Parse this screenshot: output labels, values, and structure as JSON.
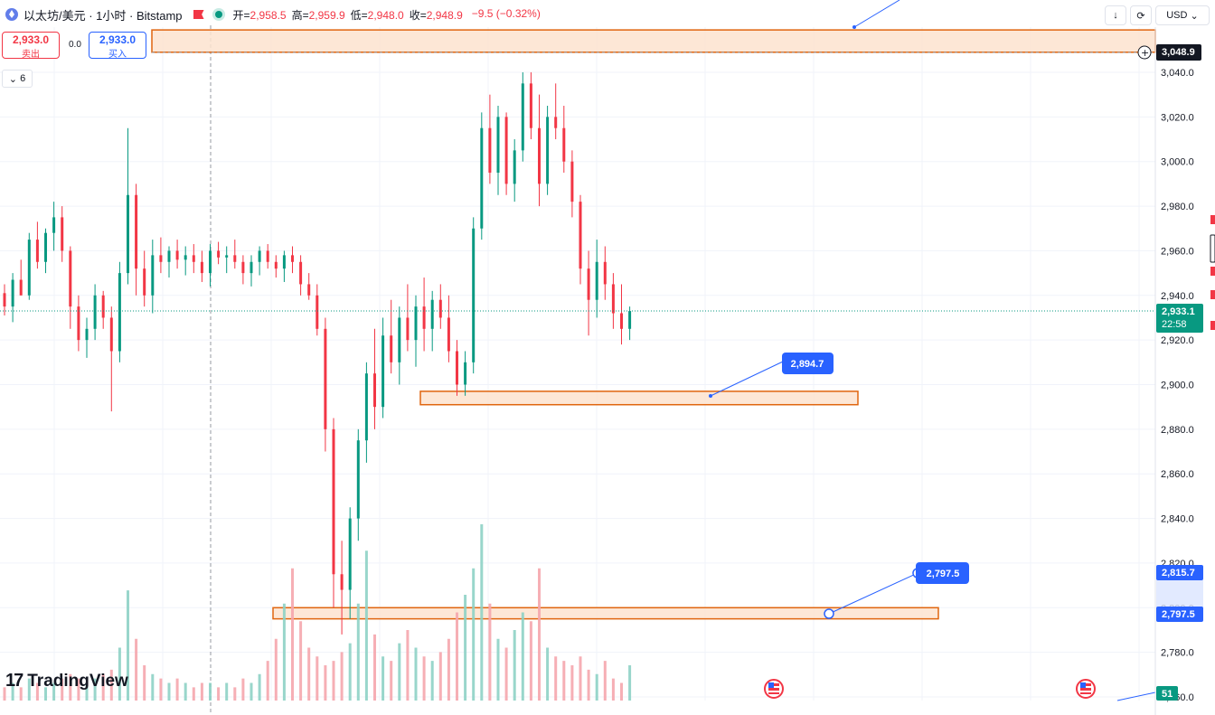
{
  "header": {
    "symbol_title": "以太坊/美元 · 1小时 · Bitstamp",
    "open_label": "开=",
    "open_value": "2,958.5",
    "high_label": "高=",
    "high_value": "2,959.9",
    "low_label": "低=",
    "low_value": "2,948.0",
    "close_label": "收=",
    "close_value": "2,948.9",
    "change": "−9.5 (−0.32%)"
  },
  "trade": {
    "sell_price": "2,933.0",
    "sell_label": "卖出",
    "buy_price": "2,933.0",
    "buy_label": "买入",
    "spread": "0.0"
  },
  "indicator_toggle": "6",
  "currency": "USD",
  "brand": "TradingView",
  "colors": {
    "up": "#089981",
    "down": "#f23645",
    "zone_fill": "#fde3cf",
    "zone_border": "#e0650f",
    "accent": "#2962ff"
  },
  "chart_data": {
    "type": "candlestick",
    "symbol": "ETH/USD",
    "interval": "1h",
    "y_range": [
      2760,
      3060
    ],
    "y_ticks": [
      "3,040.0",
      "3,020.0",
      "3,000.0",
      "2,980.0",
      "2,960.0",
      "2,940.0",
      "2,920.0",
      "2,900.0",
      "2,880.0",
      "2,860.0",
      "2,840.0",
      "2,820.0",
      "2,800.0",
      "2,780.0",
      "2,760.0"
    ],
    "price_labels": {
      "top_zone": "3,048.9",
      "current_price": "2,933.1",
      "countdown": "22:58",
      "level_a": "2,815.7",
      "level_b": "2,797.5",
      "volume_tag": "51"
    },
    "zones": [
      {
        "low": 3049,
        "high": 3059
      },
      {
        "low": 2891,
        "high": 2897
      },
      {
        "low": 2795,
        "high": 2800
      }
    ],
    "callouts": [
      "2,894.7",
      "2,797.5"
    ],
    "candles": [
      [
        2941,
        2945,
        2931,
        2935
      ],
      [
        2935,
        2950,
        2928,
        2947
      ],
      [
        2947,
        2956,
        2940,
        2940
      ],
      [
        2940,
        2968,
        2938,
        2965
      ],
      [
        2965,
        2973,
        2952,
        2955
      ],
      [
        2955,
        2970,
        2950,
        2968
      ],
      [
        2968,
        2982,
        2960,
        2975
      ],
      [
        2975,
        2980,
        2955,
        2960
      ],
      [
        2960,
        2962,
        2925,
        2935
      ],
      [
        2935,
        2940,
        2915,
        2920
      ],
      [
        2920,
        2930,
        2912,
        2925
      ],
      [
        2925,
        2945,
        2920,
        2940
      ],
      [
        2940,
        2942,
        2925,
        2930
      ],
      [
        2930,
        2935,
        2888,
        2915
      ],
      [
        2915,
        2955,
        2910,
        2950
      ],
      [
        2950,
        3015,
        2945,
        2985
      ],
      [
        2985,
        2990,
        2940,
        2952
      ],
      [
        2952,
        2960,
        2935,
        2940
      ],
      [
        2940,
        2965,
        2932,
        2958
      ],
      [
        2958,
        2966,
        2950,
        2955
      ],
      [
        2955,
        2962,
        2948,
        2960
      ],
      [
        2960,
        2965,
        2952,
        2956
      ],
      [
        2956,
        2962,
        2949,
        2958
      ],
      [
        2958,
        2963,
        2950,
        2955
      ],
      [
        2955,
        2960,
        2946,
        2950
      ],
      [
        2950,
        2963,
        2944,
        2960
      ],
      [
        2960,
        2964,
        2954,
        2957
      ],
      [
        2957,
        2962,
        2950,
        2958
      ],
      [
        2958,
        2965,
        2952,
        2955
      ],
      [
        2955,
        2958,
        2945,
        2950
      ],
      [
        2950,
        2958,
        2944,
        2955
      ],
      [
        2955,
        2962,
        2949,
        2960
      ],
      [
        2960,
        2963,
        2952,
        2955
      ],
      [
        2955,
        2958,
        2948,
        2952
      ],
      [
        2952,
        2960,
        2946,
        2958
      ],
      [
        2958,
        2962,
        2950,
        2955
      ],
      [
        2955,
        2958,
        2940,
        2945
      ],
      [
        2945,
        2950,
        2938,
        2940
      ],
      [
        2940,
        2945,
        2922,
        2925
      ],
      [
        2925,
        2930,
        2870,
        2880
      ],
      [
        2880,
        2885,
        2800,
        2815
      ],
      [
        2815,
        2830,
        2788,
        2808
      ],
      [
        2808,
        2845,
        2795,
        2840
      ],
      [
        2840,
        2880,
        2830,
        2875
      ],
      [
        2875,
        2910,
        2865,
        2905
      ],
      [
        2905,
        2925,
        2880,
        2890
      ],
      [
        2890,
        2930,
        2885,
        2922
      ],
      [
        2922,
        2938,
        2905,
        2910
      ],
      [
        2910,
        2935,
        2900,
        2930
      ],
      [
        2930,
        2945,
        2915,
        2920
      ],
      [
        2920,
        2940,
        2908,
        2935
      ],
      [
        2935,
        2948,
        2915,
        2925
      ],
      [
        2925,
        2942,
        2915,
        2938
      ],
      [
        2938,
        2945,
        2925,
        2930
      ],
      [
        2930,
        2940,
        2910,
        2915
      ],
      [
        2915,
        2920,
        2895,
        2900
      ],
      [
        2900,
        2915,
        2895,
        2910
      ],
      [
        2910,
        2975,
        2905,
        2970
      ],
      [
        2970,
        3022,
        2965,
        3015
      ],
      [
        3015,
        3030,
        2990,
        2995
      ],
      [
        2995,
        3025,
        2985,
        3020
      ],
      [
        3020,
        3022,
        2985,
        2990
      ],
      [
        2990,
        3010,
        2982,
        3005
      ],
      [
        3005,
        3040,
        3000,
        3035
      ],
      [
        3035,
        3040,
        3010,
        3015
      ],
      [
        3015,
        3030,
        2980,
        2990
      ],
      [
        2990,
        3025,
        2985,
        3020
      ],
      [
        3020,
        3035,
        3010,
        3015
      ],
      [
        3015,
        3025,
        2995,
        3000
      ],
      [
        3000,
        3005,
        2975,
        2982
      ],
      [
        2982,
        2985,
        2945,
        2952
      ],
      [
        2952,
        2960,
        2922,
        2938
      ],
      [
        2938,
        2965,
        2930,
        2955
      ],
      [
        2955,
        2962,
        2938,
        2945
      ],
      [
        2945,
        2950,
        2925,
        2932
      ],
      [
        2932,
        2945,
        2918,
        2925
      ],
      [
        2925,
        2935,
        2920,
        2933
      ]
    ],
    "volume": [
      3,
      4,
      3,
      5,
      4,
      3,
      4,
      5,
      6,
      5,
      4,
      5,
      6,
      7,
      12,
      25,
      14,
      8,
      6,
      5,
      4,
      5,
      4,
      3,
      4,
      4,
      3,
      4,
      3,
      5,
      4,
      6,
      9,
      14,
      22,
      30,
      18,
      12,
      10,
      8,
      9,
      11,
      13,
      22,
      34,
      15,
      10,
      9,
      13,
      16,
      12,
      10,
      9,
      11,
      14,
      20,
      24,
      30,
      40,
      22,
      14,
      12,
      16,
      20,
      18,
      30,
      12,
      10,
      9,
      8,
      10,
      7,
      6,
      9,
      5,
      4,
      8
    ]
  }
}
